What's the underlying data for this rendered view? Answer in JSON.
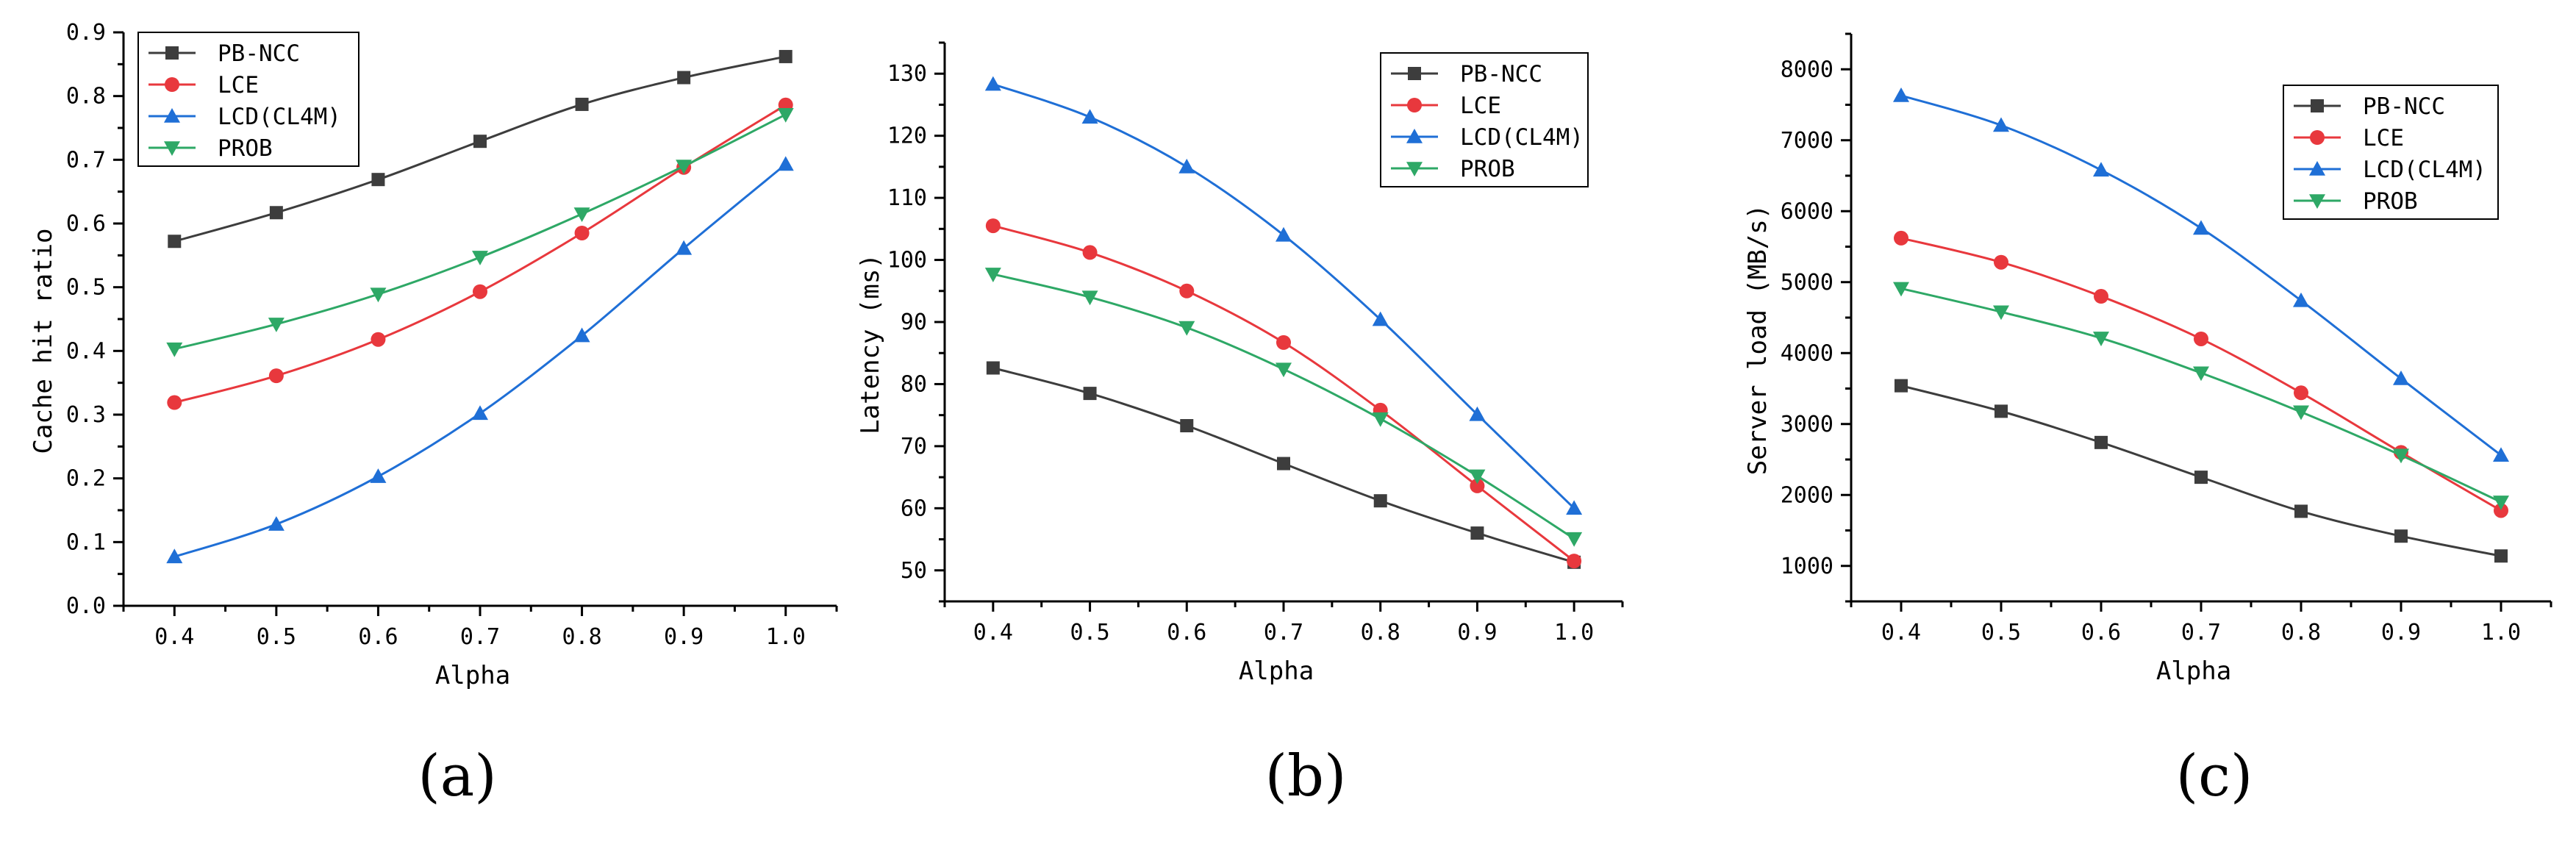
{
  "chart_data": [
    {
      "type": "line",
      "panel": "(a)",
      "xlabel": "Alpha",
      "ylabel": "Cache hit ratio",
      "x": [
        0.4,
        0.5,
        0.6,
        0.7,
        0.8,
        0.9,
        1.0
      ],
      "x_tick_labels": [
        "0.4",
        "0.5",
        "0.6",
        "0.7",
        "0.8",
        "0.9",
        "1.0"
      ],
      "xlim": [
        0.35,
        1.05
      ],
      "ylim": [
        0.0,
        0.9
      ],
      "y_ticks": [
        0.0,
        0.1,
        0.2,
        0.3,
        0.4,
        0.5,
        0.6,
        0.7,
        0.8,
        0.9
      ],
      "y_tick_labels": [
        "0.0",
        "0.1",
        "0.2",
        "0.3",
        "0.4",
        "0.5",
        "0.6",
        "0.7",
        "0.8",
        "0.9"
      ],
      "legend_position": "top-left",
      "series": [
        {
          "name": "PB-NCC",
          "color": "#3d3d3d",
          "marker": "square",
          "values": [
            0.572,
            0.617,
            0.669,
            0.729,
            0.787,
            0.829,
            0.862
          ]
        },
        {
          "name": "LCE",
          "color": "#e8383d",
          "marker": "circle",
          "values": [
            0.319,
            0.361,
            0.418,
            0.493,
            0.585,
            0.688,
            0.786
          ]
        },
        {
          "name": "LCD(CL4M)",
          "color": "#1f6fd6",
          "marker": "triangle-up",
          "values": [
            0.077,
            0.128,
            0.203,
            0.302,
            0.424,
            0.561,
            0.693
          ]
        },
        {
          "name": "PROB",
          "color": "#2ea866",
          "marker": "triangle-down",
          "values": [
            0.403,
            0.442,
            0.489,
            0.547,
            0.615,
            0.69,
            0.771
          ]
        }
      ]
    },
    {
      "type": "line",
      "panel": "(b)",
      "xlabel": "Alpha",
      "ylabel": "Latency (ms)",
      "x": [
        0.4,
        0.5,
        0.6,
        0.7,
        0.8,
        0.9,
        1.0
      ],
      "x_tick_labels": [
        "0.4",
        "0.5",
        "0.6",
        "0.7",
        "0.8",
        "0.9",
        "1.0"
      ],
      "xlim": [
        0.35,
        1.05
      ],
      "ylim": [
        45,
        135
      ],
      "y_ticks": [
        50,
        60,
        70,
        80,
        90,
        100,
        110,
        120,
        130
      ],
      "y_tick_labels": [
        "50",
        "60",
        "70",
        "80",
        "90",
        "100",
        "110",
        "120",
        "130"
      ],
      "legend_position": "top-right",
      "series": [
        {
          "name": "PB-NCC",
          "color": "#3d3d3d",
          "marker": "square",
          "values": [
            82.6,
            78.5,
            73.3,
            67.2,
            61.2,
            56.0,
            51.3
          ]
        },
        {
          "name": "LCE",
          "color": "#e8383d",
          "marker": "circle",
          "values": [
            105.5,
            101.2,
            95.0,
            86.7,
            75.8,
            63.6,
            51.5
          ]
        },
        {
          "name": "LCD(CL4M)",
          "color": "#1f6fd6",
          "marker": "triangle-up",
          "values": [
            128.3,
            123.0,
            115.0,
            104.0,
            90.4,
            75.1,
            60.0
          ]
        },
        {
          "name": "PROB",
          "color": "#2ea866",
          "marker": "triangle-down",
          "values": [
            97.7,
            94.0,
            89.1,
            82.4,
            74.4,
            65.2,
            55.1
          ]
        }
      ]
    },
    {
      "type": "line",
      "panel": "(c)",
      "xlabel": "Alpha",
      "ylabel": "Server load (MB/s)",
      "x": [
        0.4,
        0.5,
        0.6,
        0.7,
        0.8,
        0.9,
        1.0
      ],
      "x_tick_labels": [
        "0.4",
        "0.5",
        "0.6",
        "0.7",
        "0.8",
        "0.9",
        "1.0"
      ],
      "xlim": [
        0.35,
        1.05
      ],
      "ylim": [
        500,
        8500
      ],
      "y_ticks": [
        1000,
        2000,
        3000,
        4000,
        5000,
        6000,
        7000,
        8000
      ],
      "y_tick_labels": [
        "1000",
        "2000",
        "3000",
        "4000",
        "5000",
        "6000",
        "7000",
        "8000"
      ],
      "legend_position": "top-right",
      "series": [
        {
          "name": "PB-NCC",
          "color": "#3d3d3d",
          "marker": "square",
          "values": [
            3540,
            3180,
            2740,
            2250,
            1770,
            1420,
            1140
          ]
        },
        {
          "name": "LCE",
          "color": "#e8383d",
          "marker": "circle",
          "values": [
            5620,
            5280,
            4800,
            4200,
            3440,
            2600,
            1780
          ]
        },
        {
          "name": "LCD(CL4M)",
          "color": "#1f6fd6",
          "marker": "triangle-up",
          "values": [
            7630,
            7210,
            6580,
            5760,
            4740,
            3640,
            2560
          ]
        },
        {
          "name": "PROB",
          "color": "#2ea866",
          "marker": "triangle-down",
          "values": [
            4910,
            4580,
            4210,
            3720,
            3170,
            2560,
            1900
          ]
        }
      ]
    }
  ]
}
